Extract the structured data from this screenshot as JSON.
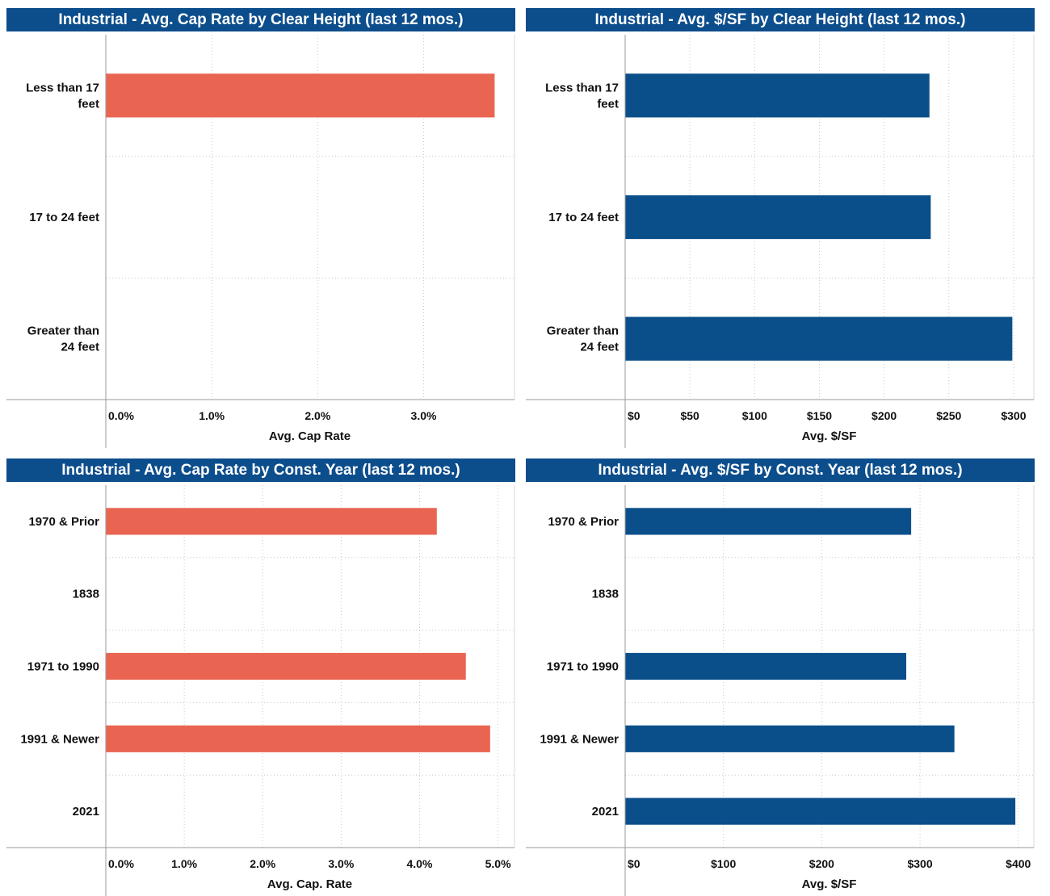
{
  "colors": {
    "header": "#0c4d8c",
    "cap_bar": "#e96552",
    "psf_bar": "#0b4f8a",
    "grid": "#c8c8c8",
    "axis": "#9a9a9a"
  },
  "panels": [
    {
      "title": "Industrial - Avg. Cap Rate by Clear Height (last 12 mos.)"
    },
    {
      "title": "Industrial - Avg. $/SF by Clear Height (last 12 mos.)"
    },
    {
      "title": "Industrial - Avg. Cap Rate by Const. Year (last 12 mos.)"
    },
    {
      "title": "Industrial - Avg. $/SF by Const. Year (last 12 mos.)"
    }
  ],
  "chart_data": [
    {
      "type": "bar",
      "orientation": "horizontal",
      "title": "Industrial - Avg. Cap Rate by Clear Height (last 12 mos.)",
      "categories": [
        [
          "Less than 17",
          "feet"
        ],
        [
          "17 to 24 feet"
        ],
        [
          "Greater than",
          "24 feet"
        ]
      ],
      "values": [
        3.67,
        null,
        null
      ],
      "xlabel": "Avg. Cap Rate",
      "xlim": [
        0,
        3.85
      ],
      "ticks": [
        0,
        1,
        2,
        3
      ],
      "tick_labels": [
        "0.0%",
        "1.0%",
        "2.0%",
        "3.0%"
      ],
      "grid": true
    },
    {
      "type": "bar",
      "orientation": "horizontal",
      "title": "Industrial - Avg. $/SF by Clear Height (last 12 mos.)",
      "categories": [
        [
          "Less than 17",
          "feet"
        ],
        [
          "17 to 24 feet"
        ],
        [
          "Greater than",
          "24 feet"
        ]
      ],
      "values": [
        235,
        236,
        299
      ],
      "xlabel": "Avg. $/SF",
      "xlim": [
        0,
        315
      ],
      "ticks": [
        0,
        50,
        100,
        150,
        200,
        250,
        300
      ],
      "tick_labels": [
        "$0",
        "$50",
        "$100",
        "$150",
        "$200",
        "$250",
        "$300"
      ],
      "grid": true
    },
    {
      "type": "bar",
      "orientation": "horizontal",
      "title": "Industrial - Avg. Cap Rate by Const. Year (last 12 mos.)",
      "categories": [
        [
          "1970 & Prior"
        ],
        [
          "1838"
        ],
        [
          "1971 to 1990"
        ],
        [
          "1991 & Newer"
        ],
        [
          "2021"
        ]
      ],
      "values": [
        4.22,
        null,
        4.59,
        4.9,
        null
      ],
      "xlabel": "Avg. Cap. Rate",
      "xlim": [
        0,
        5.2
      ],
      "ticks": [
        0,
        1,
        2,
        3,
        4,
        5
      ],
      "tick_labels": [
        "0.0%",
        "1.0%",
        "2.0%",
        "3.0%",
        "4.0%",
        "5.0%"
      ],
      "grid": true
    },
    {
      "type": "bar",
      "orientation": "horizontal",
      "title": "Industrial - Avg. $/SF by Const. Year (last 12 mos.)",
      "categories": [
        [
          "1970 & Prior"
        ],
        [
          "1838"
        ],
        [
          "1971 to 1990"
        ],
        [
          "1991 & Newer"
        ],
        [
          "2021"
        ]
      ],
      "values": [
        291,
        null,
        286,
        335,
        397
      ],
      "xlabel": "Avg. $/SF",
      "xlim": [
        0,
        415
      ],
      "ticks": [
        0,
        100,
        200,
        300,
        400
      ],
      "tick_labels": [
        "$0",
        "$100",
        "$200",
        "$300",
        "$400"
      ],
      "grid": true
    }
  ]
}
